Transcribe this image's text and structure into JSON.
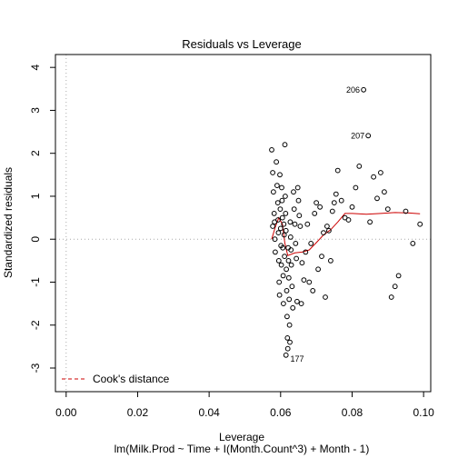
{
  "chart_data": {
    "type": "scatter",
    "title": "Residuals vs Leverage",
    "xlabel": "Leverage",
    "subtitle": "lm(Milk.Prod ~ Time + I(Month.Count^3) + Month - 1)",
    "ylabel": "Standardized residuals",
    "xlim": [
      -0.003,
      0.102
    ],
    "ylim": [
      -3.55,
      4.3
    ],
    "x_ticks": [
      "0.00",
      "0.02",
      "0.04",
      "0.06",
      "0.08",
      "0.10"
    ],
    "x_tick_values": [
      0,
      0.02,
      0.04,
      0.06,
      0.08,
      0.1
    ],
    "y_ticks": [
      "-3",
      "-2",
      "-1",
      "0",
      "1",
      "2",
      "3",
      "4"
    ],
    "y_tick_values": [
      -3,
      -2,
      -1,
      0,
      1,
      2,
      3,
      4
    ],
    "grid": false,
    "reference_lines": {
      "horizontal": 0,
      "vertical": 0,
      "style": "dotted grey"
    },
    "legend": {
      "position": "bottom-left",
      "entry": "Cook's distance",
      "color": "#cc0000",
      "style": "dashed"
    },
    "colors": {
      "points": "#000000",
      "smoother": "#cc0000",
      "reference": "#aaaaaa"
    },
    "annotations": [
      {
        "label": "206",
        "x": 0.0832,
        "y": 3.48
      },
      {
        "label": "207",
        "x": 0.0845,
        "y": 2.41
      },
      {
        "label": "177",
        "x": 0.0617,
        "y": -2.75
      }
    ],
    "smoother": [
      [
        0.0575,
        0.0
      ],
      [
        0.0585,
        0.28
      ],
      [
        0.0595,
        0.5
      ],
      [
        0.0605,
        0.35
      ],
      [
        0.0612,
        -0.1
      ],
      [
        0.062,
        -0.38
      ],
      [
        0.064,
        -0.32
      ],
      [
        0.066,
        -0.3
      ],
      [
        0.068,
        -0.25
      ],
      [
        0.07,
        -0.08
      ],
      [
        0.072,
        0.1
      ],
      [
        0.074,
        0.22
      ],
      [
        0.076,
        0.4
      ],
      [
        0.078,
        0.6
      ],
      [
        0.08,
        0.6
      ],
      [
        0.084,
        0.58
      ],
      [
        0.088,
        0.6
      ],
      [
        0.092,
        0.62
      ],
      [
        0.096,
        0.61
      ],
      [
        0.099,
        0.59
      ]
    ],
    "points": [
      [
        0.0575,
        2.08
      ],
      [
        0.0578,
        1.55
      ],
      [
        0.058,
        1.1
      ],
      [
        0.0582,
        0.6
      ],
      [
        0.0583,
        0.4
      ],
      [
        0.0584,
        0.0
      ],
      [
        0.0585,
        -0.3
      ],
      [
        0.0578,
        0.3
      ],
      [
        0.0588,
        1.8
      ],
      [
        0.059,
        1.25
      ],
      [
        0.0592,
        0.85
      ],
      [
        0.0593,
        0.45
      ],
      [
        0.0594,
        0.15
      ],
      [
        0.0595,
        -0.5
      ],
      [
        0.0596,
        -1.0
      ],
      [
        0.0597,
        -1.3
      ],
      [
        0.0598,
        1.5
      ],
      [
        0.0599,
        0.7
      ],
      [
        0.06,
        0.25
      ],
      [
        0.0601,
        -0.15
      ],
      [
        0.0602,
        -0.6
      ],
      [
        0.0603,
        1.2
      ],
      [
        0.0604,
        0.9
      ],
      [
        0.0605,
        0.5
      ],
      [
        0.0606,
        -0.2
      ],
      [
        0.0607,
        -0.85
      ],
      [
        0.0608,
        -1.5
      ],
      [
        0.0609,
        0.35
      ],
      [
        0.061,
        0.1
      ],
      [
        0.0611,
        -0.4
      ],
      [
        0.0612,
        2.2
      ],
      [
        0.0613,
        1.0
      ],
      [
        0.0614,
        0.6
      ],
      [
        0.0615,
        0.2
      ],
      [
        0.0616,
        -0.7
      ],
      [
        0.0617,
        -1.2
      ],
      [
        0.0618,
        -1.8
      ],
      [
        0.0619,
        -2.3
      ],
      [
        0.062,
        -2.55
      ],
      [
        0.0615,
        -2.7
      ],
      [
        0.0621,
        -0.2
      ],
      [
        0.0622,
        -0.5
      ],
      [
        0.0623,
        -0.9
      ],
      [
        0.0624,
        -1.4
      ],
      [
        0.0625,
        -2.0
      ],
      [
        0.0626,
        -2.4
      ],
      [
        0.0627,
        0.4
      ],
      [
        0.0628,
        0.05
      ],
      [
        0.0629,
        -0.25
      ],
      [
        0.063,
        -0.6
      ],
      [
        0.0632,
        -1.1
      ],
      [
        0.0634,
        -1.6
      ],
      [
        0.0636,
        1.1
      ],
      [
        0.0638,
        0.7
      ],
      [
        0.064,
        0.35
      ],
      [
        0.0642,
        -0.1
      ],
      [
        0.0644,
        -0.45
      ],
      [
        0.0646,
        -1.45
      ],
      [
        0.0648,
        1.2
      ],
      [
        0.065,
        0.9
      ],
      [
        0.0652,
        0.55
      ],
      [
        0.0655,
        0.3
      ],
      [
        0.0658,
        -1.5
      ],
      [
        0.066,
        -0.55
      ],
      [
        0.0665,
        -0.95
      ],
      [
        0.067,
        -0.3
      ],
      [
        0.0675,
        0.35
      ],
      [
        0.068,
        -1.0
      ],
      [
        0.0685,
        -0.1
      ],
      [
        0.069,
        -1.2
      ],
      [
        0.0695,
        0.6
      ],
      [
        0.07,
        0.85
      ],
      [
        0.0705,
        -0.7
      ],
      [
        0.071,
        0.75
      ],
      [
        0.0715,
        -0.4
      ],
      [
        0.072,
        0.15
      ],
      [
        0.0725,
        -1.35
      ],
      [
        0.073,
        0.3
      ],
      [
        0.0735,
        0.2
      ],
      [
        0.074,
        -0.5
      ],
      [
        0.0745,
        0.65
      ],
      [
        0.075,
        0.85
      ],
      [
        0.0755,
        1.05
      ],
      [
        0.076,
        1.6
      ],
      [
        0.077,
        0.9
      ],
      [
        0.078,
        0.5
      ],
      [
        0.079,
        0.45
      ],
      [
        0.08,
        0.75
      ],
      [
        0.081,
        1.2
      ],
      [
        0.082,
        1.7
      ],
      [
        0.0832,
        3.48
      ],
      [
        0.0845,
        2.41
      ],
      [
        0.085,
        0.4
      ],
      [
        0.086,
        1.45
      ],
      [
        0.087,
        0.95
      ],
      [
        0.088,
        1.55
      ],
      [
        0.089,
        1.1
      ],
      [
        0.09,
        0.7
      ],
      [
        0.091,
        -1.35
      ],
      [
        0.092,
        -1.1
      ],
      [
        0.093,
        -0.85
      ],
      [
        0.095,
        0.65
      ],
      [
        0.097,
        -0.1
      ],
      [
        0.099,
        0.35
      ]
    ]
  }
}
